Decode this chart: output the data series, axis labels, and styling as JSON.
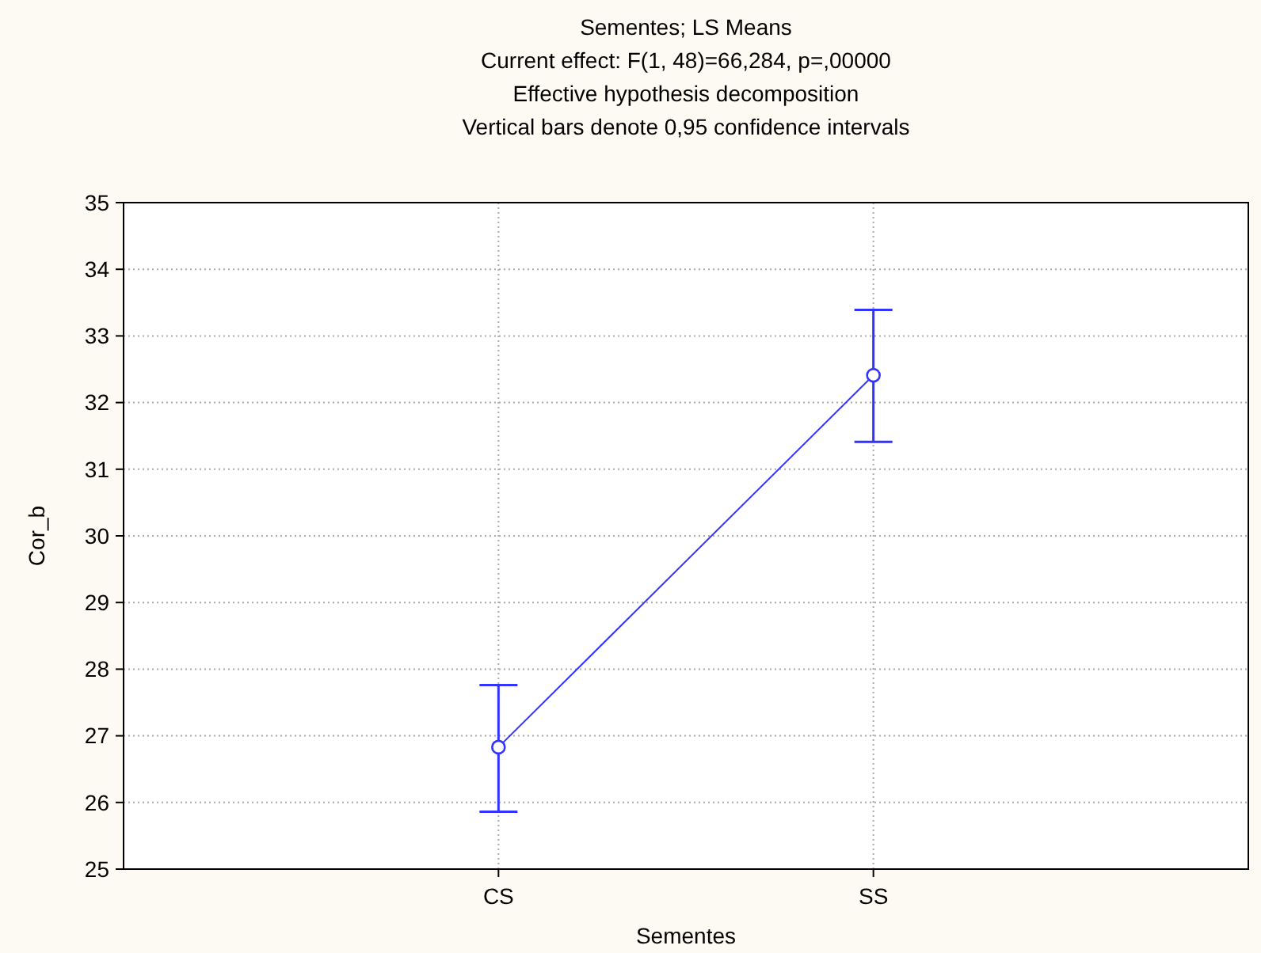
{
  "chart_data": {
    "type": "line",
    "title": "Sementes; LS Means",
    "subtitle": "Current effect: F(1, 48)=66,284, p=,00000",
    "annotations": [
      "Effective hypothesis decomposition",
      "Vertical bars denote 0,95 confidence intervals"
    ],
    "xlabel": "Sementes",
    "ylabel": "Cor_b",
    "categories": [
      "CS",
      "SS"
    ],
    "series": [
      {
        "color": "#3333ff",
        "values": [
          26.83,
          32.41
        ],
        "errors": [
          [
            25.86,
            27.76
          ],
          [
            31.41,
            33.39
          ]
        ]
      }
    ],
    "ylim": [
      25,
      35
    ],
    "yticks": [
      25,
      26,
      27,
      28,
      29,
      30,
      31,
      32,
      33,
      34,
      35
    ],
    "grid": true,
    "marker": "circle",
    "line_style": "solid"
  }
}
